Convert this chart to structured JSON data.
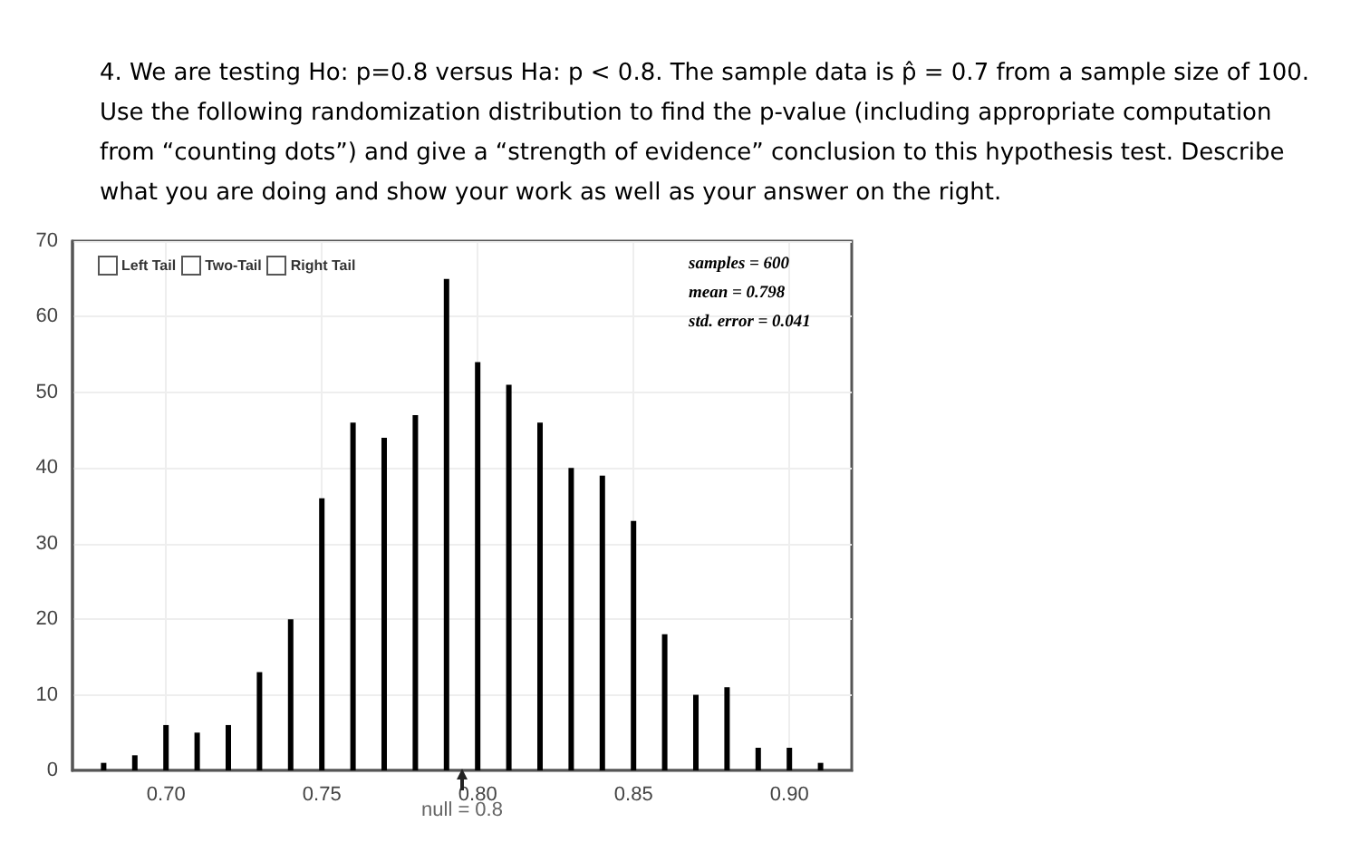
{
  "chart_data": {
    "type": "bar",
    "title": "4.  We are testing Ho: p=0.8 versus Ha: p < 0.8.  The sample data is p̂ = 0.7 from a sample size of 100.  Use the following randomization distribution to find the p-value (including appropriate computation from “counting dots”) and give a “strength of evidence” conclusion to this hypothesis test.  Describe what you are doing and show your work as well as your answer on the right.",
    "x": [
      0.68,
      0.69,
      0.7,
      0.71,
      0.72,
      0.73,
      0.74,
      0.75,
      0.76,
      0.77,
      0.78,
      0.79,
      0.8,
      0.81,
      0.82,
      0.83,
      0.84,
      0.85,
      0.86,
      0.87,
      0.88,
      0.89,
      0.9,
      0.91
    ],
    "values": [
      1,
      2,
      6,
      5,
      6,
      13,
      20,
      36,
      46,
      44,
      47,
      65,
      54,
      51,
      46,
      40,
      39,
      33,
      18,
      10,
      11,
      3,
      3,
      1
    ],
    "color": "#000000",
    "xlim": [
      0.67,
      0.92
    ],
    "xticks": [
      {
        "value": 0.7,
        "label": "0.70"
      },
      {
        "value": 0.75,
        "label": "0.75"
      },
      {
        "value": 0.8,
        "label": "0.80"
      },
      {
        "value": 0.85,
        "label": "0.85"
      },
      {
        "value": 0.9,
        "label": "0.90"
      }
    ],
    "ylim": [
      0,
      70
    ],
    "yticks": [
      0,
      10,
      20,
      30,
      40,
      50,
      60,
      70
    ],
    "grid": true,
    "annotations": [
      "Left Tail",
      "Two-Tail",
      "Right Tail",
      "samples = 600",
      "mean = 0.798",
      "std. error = 0.041",
      "null = 0.8"
    ]
  }
}
